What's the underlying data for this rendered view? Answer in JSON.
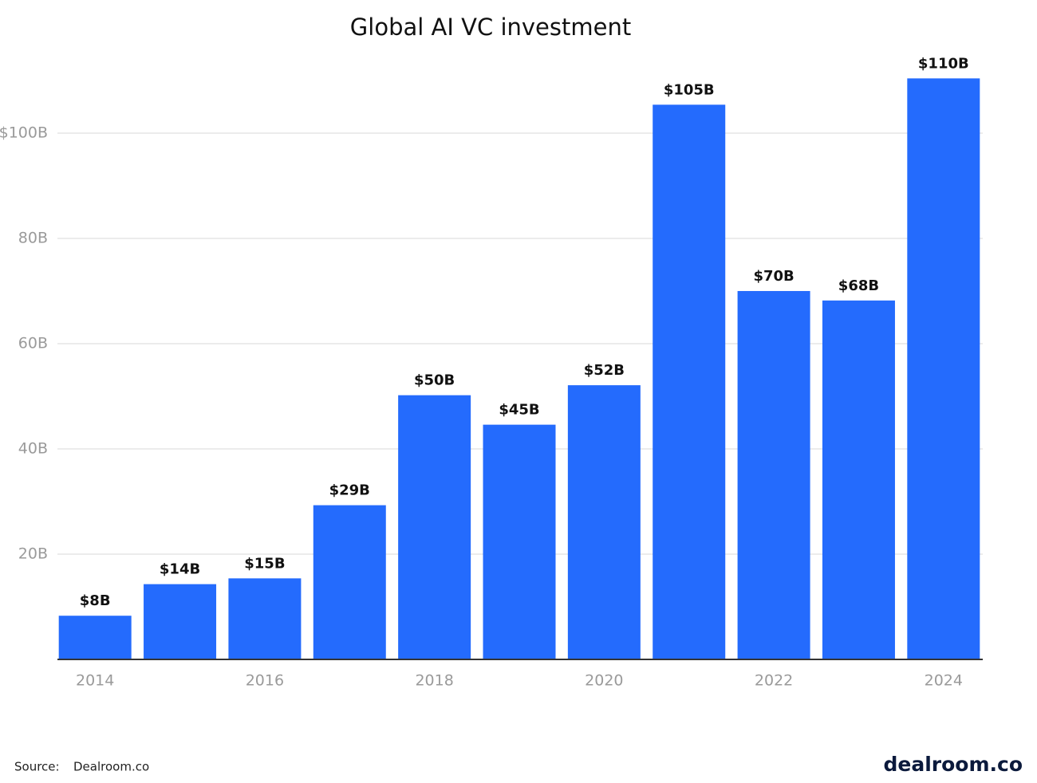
{
  "chart_data": {
    "type": "bar",
    "title": "Global AI VC investment",
    "categories": [
      "2014",
      null,
      "2016",
      null,
      "2018",
      null,
      "2020",
      null,
      "2022",
      null,
      "2024"
    ],
    "values": [
      8.3,
      14.3,
      15.4,
      29.3,
      50.2,
      44.6,
      52.1,
      105.4,
      70.0,
      68.2,
      110.4
    ],
    "value_labels": [
      "$8B",
      "$14B",
      "$15B",
      "$29B",
      "$50B",
      "$45B",
      "$52B",
      "$105B",
      "$70B",
      "$68B",
      "$110B"
    ],
    "color": "#246bfd",
    "ylim": [
      0,
      110.6
    ],
    "yticks": [
      {
        "value": 20,
        "label": "20B"
      },
      {
        "value": 40,
        "label": "40B"
      },
      {
        "value": 60,
        "label": "60B"
      },
      {
        "value": 80,
        "label": "80B"
      },
      {
        "value": 100,
        "label": "$100B"
      }
    ],
    "grid": true
  },
  "footer": {
    "source_label": "Source:",
    "source": "Dealroom.co",
    "brand": "dealroom.co"
  }
}
